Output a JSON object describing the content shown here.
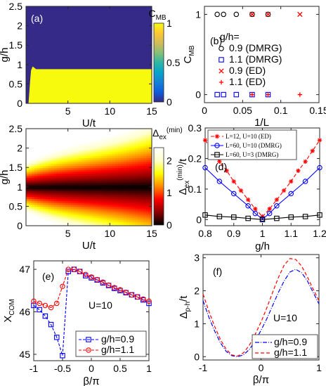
{
  "chart_data": [
    {
      "panel": "a",
      "type": "heatmap",
      "panel_label": "(a)",
      "xlabel": "U/t",
      "ylabel": "g/h",
      "xlim": [
        0,
        15
      ],
      "ylim": [
        0,
        2.5
      ],
      "xticks": [
        "5",
        "10",
        "15"
      ],
      "yticks": [
        "0",
        "0.5",
        "1",
        "1.5",
        "2",
        "2.5"
      ],
      "colorbar_label": "C",
      "colorbar_sub": "MB",
      "colorbar_ticks": [
        "0",
        "0.5",
        "1"
      ],
      "colors": {
        "low": "#352a87",
        "high": "#f8fa0d"
      },
      "boundary": [
        [
          0.3,
          0.0
        ],
        [
          0.4,
          0.3
        ],
        [
          0.5,
          0.6
        ],
        [
          0.6,
          0.85
        ],
        [
          0.8,
          0.95
        ],
        [
          1.2,
          0.88
        ],
        [
          15,
          0.88
        ]
      ],
      "description_regions": {
        "below_boundary": 1,
        "above_boundary": 0
      }
    },
    {
      "panel": "b",
      "type": "scatter",
      "panel_label": "(b)",
      "xlabel": "1/L",
      "ylabel": "C",
      "ylabel_sub": "MB",
      "xlim": [
        0,
        0.15
      ],
      "ylim": [
        -0.1,
        1.1
      ],
      "xticks": [
        "0",
        "0.05",
        "0.1",
        "0.15"
      ],
      "yticks": [
        "0",
        "1"
      ],
      "legend_title": "g/h=",
      "legend_position": "right",
      "series": [
        {
          "name": "0.9 (DMRG)",
          "marker": "circle",
          "color": "#000000",
          "x": [
            0.0167,
            0.025,
            0.0417,
            0.0625,
            0.0833
          ],
          "y": [
            1,
            1,
            1,
            1,
            1
          ]
        },
        {
          "name": "1.1 (DMRG)",
          "marker": "square",
          "color": "#0000ff",
          "x": [
            0.0167,
            0.025,
            0.0417,
            0.0625,
            0.0833
          ],
          "y": [
            0,
            0,
            0,
            0,
            0
          ]
        },
        {
          "name": "0.9 (ED)",
          "marker": "x",
          "color": "#ff0000",
          "x": [
            0.0625,
            0.0833,
            0.125
          ],
          "y": [
            1,
            1,
            1
          ]
        },
        {
          "name": "1.1 (ED)",
          "marker": "plus",
          "color": "#ff0000",
          "x": [
            0.0625,
            0.0833,
            0.125
          ],
          "y": [
            0,
            0,
            0
          ]
        }
      ]
    },
    {
      "panel": "c",
      "type": "heatmap",
      "panel_label": "(c)",
      "xlabel": "U/t",
      "ylabel": "g/h",
      "xlim": [
        0,
        15
      ],
      "ylim": [
        0,
        2.5
      ],
      "xticks": [
        "5",
        "10",
        "15"
      ],
      "yticks": [
        "0",
        "0.5",
        "1",
        "1.5",
        "2",
        "2.5"
      ],
      "colorbar_label": "Δ",
      "colorbar_sub": "ex",
      "colorbar_sup": "(min)",
      "colorbar_ticks": [
        "0",
        "1",
        "2"
      ],
      "colorbar_range": [
        0,
        2.4
      ],
      "colormap": [
        "#000000",
        "#8b0000",
        "#ff0000",
        "#ff8c00",
        "#ffff00",
        "#ffffcc",
        "#ffffff"
      ]
    },
    {
      "panel": "d",
      "type": "line",
      "panel_label": "(d)",
      "xlabel": "g/h",
      "ylabel": "Δ",
      "ylabel_sub": "ex",
      "ylabel_sup": "(min)",
      "ylabel_tail": "/t",
      "xlim": [
        0.8,
        1.2
      ],
      "ylim": [
        -0.02,
        0.3
      ],
      "xticks": [
        "0.8",
        "0.9",
        "1",
        "1.1",
        "1.2"
      ],
      "yticks": [
        "0",
        "0.1",
        "0.2",
        "0.3"
      ],
      "legend_position": "top",
      "series": [
        {
          "name": "L=12, U=10 (ED)",
          "marker": "star",
          "color": "#ff0000",
          "dash": "5,3",
          "x": [
            0.8,
            0.825,
            0.85,
            0.875,
            0.9,
            0.925,
            0.95,
            0.975,
            1.0,
            1.025,
            1.05,
            1.075,
            1.1,
            1.125,
            1.15,
            1.175,
            1.2
          ],
          "y": [
            0.26,
            0.225,
            0.19,
            0.16,
            0.125,
            0.095,
            0.065,
            0.035,
            0.01,
            0.035,
            0.065,
            0.095,
            0.125,
            0.16,
            0.19,
            0.225,
            0.26
          ]
        },
        {
          "name": "L=60, U=10 (DMRG)",
          "marker": "circle",
          "color": "#0000ff",
          "dash": "",
          "x": [
            0.8,
            0.85,
            0.9,
            0.95,
            0.975,
            1.0,
            1.025,
            1.05,
            1.1,
            1.15,
            1.2
          ],
          "y": [
            0.17,
            0.125,
            0.085,
            0.045,
            0.02,
            0.002,
            0.02,
            0.045,
            0.085,
            0.125,
            0.17
          ]
        },
        {
          "name": "L=60, U=3 (DMRG)",
          "marker": "square",
          "color": "#000000",
          "dash": "",
          "x": [
            0.8,
            0.85,
            0.9,
            0.95,
            1.0,
            1.05,
            1.1,
            1.15,
            1.2
          ],
          "y": [
            0.015,
            0.01,
            0.008,
            0.004,
            0.0,
            0.004,
            0.008,
            0.01,
            0.015
          ]
        }
      ]
    },
    {
      "panel": "e",
      "type": "line",
      "panel_label": "(e)",
      "xlabel": "β/π",
      "ylabel": "X",
      "ylabel_sub": "COM",
      "xlim": [
        -1,
        1
      ],
      "ylim": [
        44.85,
        47.2
      ],
      "xticks": [
        "-1",
        "-0.5",
        "0",
        "0.5",
        "1"
      ],
      "yticks": [
        "45",
        "46",
        "47"
      ],
      "annotation": "U=10",
      "legend_position": "bottom",
      "series": [
        {
          "name": "g/h=0.9",
          "marker": "square",
          "color": "#0000ff",
          "dash": "4,2",
          "x": [
            -1.0,
            -0.9,
            -0.8,
            -0.7,
            -0.6,
            -0.5,
            -0.4,
            -0.3,
            -0.2,
            -0.1,
            0.0,
            0.1,
            0.2,
            0.3,
            0.4,
            0.5,
            0.6,
            0.7,
            0.8,
            0.9,
            1.0
          ],
          "y": [
            46.15,
            46.05,
            45.9,
            45.7,
            45.4,
            44.97,
            46.95,
            47.0,
            46.95,
            46.85,
            46.8,
            46.75,
            46.68,
            46.62,
            46.55,
            46.5,
            46.45,
            46.4,
            46.35,
            46.28,
            46.2
          ]
        },
        {
          "name": "g/h=1.1",
          "marker": "circle",
          "color": "#ff0000",
          "dash": "4,2",
          "x": [
            -1.0,
            -0.9,
            -0.8,
            -0.7,
            -0.6,
            -0.5,
            -0.4,
            -0.3,
            -0.2,
            -0.1,
            0.0,
            0.1,
            0.2,
            0.3,
            0.4,
            0.5,
            0.6,
            0.7,
            0.8,
            0.9,
            1.0
          ],
          "y": [
            46.25,
            46.2,
            46.15,
            46.1,
            46.2,
            46.6,
            47.0,
            47.0,
            46.95,
            46.88,
            46.82,
            46.76,
            46.7,
            46.63,
            46.57,
            46.52,
            46.46,
            46.4,
            46.35,
            46.3,
            46.25
          ]
        }
      ]
    },
    {
      "panel": "f",
      "type": "line",
      "panel_label": "(f)",
      "xlabel": "β/π",
      "ylabel": "Δ",
      "ylabel_sub": "p-h",
      "ylabel_tail": "/t",
      "xlim": [
        -1,
        1
      ],
      "ylim": [
        -0.1,
        3.1
      ],
      "xticks": [
        "-1",
        "0",
        "1"
      ],
      "yticks": [
        "0",
        "1",
        "2",
        "3"
      ],
      "annotation": "U=10",
      "legend_position": "bottom",
      "series": [
        {
          "name": "g/h=0.9",
          "marker": "none",
          "color": "#0000ff",
          "dash": "6,2,1,2",
          "x": [
            -1.0,
            -0.9,
            -0.8,
            -0.7,
            -0.6,
            -0.5,
            -0.4,
            -0.3,
            -0.2,
            -0.1,
            0.0,
            0.1,
            0.2,
            0.3,
            0.4,
            0.5,
            0.6,
            0.7,
            0.8,
            0.9,
            1.0
          ],
          "y": [
            1.7,
            1.2,
            0.78,
            0.42,
            0.16,
            0.03,
            0.0,
            0.06,
            0.22,
            0.48,
            0.8,
            1.15,
            1.55,
            1.95,
            2.3,
            2.57,
            2.65,
            2.55,
            2.3,
            1.95,
            1.6
          ]
        },
        {
          "name": "g/h=1.1",
          "marker": "none",
          "color": "#ff0000",
          "dash": "5,3",
          "x": [
            -1.0,
            -0.9,
            -0.8,
            -0.7,
            -0.6,
            -0.5,
            -0.4,
            -0.3,
            -0.2,
            -0.1,
            0.0,
            0.1,
            0.2,
            0.3,
            0.4,
            0.5,
            0.6,
            0.7,
            0.8,
            0.9,
            1.0
          ],
          "y": [
            1.9,
            1.38,
            0.92,
            0.52,
            0.22,
            0.05,
            0.02,
            0.12,
            0.35,
            0.68,
            1.05,
            1.48,
            1.95,
            2.4,
            2.78,
            2.98,
            2.95,
            2.75,
            2.42,
            2.05,
            1.7
          ]
        }
      ]
    }
  ]
}
